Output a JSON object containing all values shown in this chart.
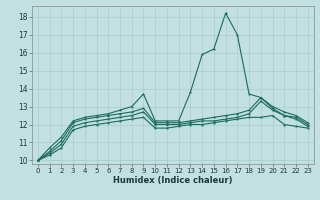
{
  "xlabel": "Humidex (Indice chaleur)",
  "background_color": "#c2e0e0",
  "grid_color": "#a8cccc",
  "line_color": "#1a6b5a",
  "xlim_min": -0.5,
  "xlim_max": 23.5,
  "ylim_min": 9.8,
  "ylim_max": 18.6,
  "yticks": [
    10,
    11,
    12,
    13,
    14,
    15,
    16,
    17,
    18
  ],
  "xticks": [
    0,
    1,
    2,
    3,
    4,
    5,
    6,
    7,
    8,
    9,
    10,
    11,
    12,
    13,
    14,
    15,
    16,
    17,
    18,
    19,
    20,
    21,
    22,
    23
  ],
  "series_main": [
    10.0,
    10.7,
    11.3,
    12.2,
    12.4,
    12.5,
    12.6,
    12.8,
    13.0,
    13.7,
    12.2,
    12.2,
    12.2,
    13.8,
    15.9,
    16.2,
    18.2,
    17.0,
    13.7,
    13.5,
    12.9,
    12.5,
    12.4,
    12.0
  ],
  "series_2": [
    10.0,
    10.5,
    11.1,
    12.1,
    12.3,
    12.4,
    12.5,
    12.6,
    12.7,
    12.9,
    12.1,
    12.1,
    12.1,
    12.2,
    12.3,
    12.4,
    12.5,
    12.6,
    12.8,
    13.5,
    13.0,
    12.7,
    12.5,
    12.1
  ],
  "series_3": [
    10.0,
    10.4,
    10.9,
    11.9,
    12.1,
    12.2,
    12.3,
    12.4,
    12.5,
    12.7,
    12.0,
    12.0,
    12.0,
    12.1,
    12.2,
    12.2,
    12.3,
    12.4,
    12.6,
    13.3,
    12.8,
    12.5,
    12.3,
    11.9
  ],
  "series_4": [
    10.0,
    10.3,
    10.7,
    11.7,
    11.9,
    12.0,
    12.1,
    12.2,
    12.3,
    12.4,
    11.8,
    11.8,
    11.9,
    12.0,
    12.0,
    12.1,
    12.2,
    12.3,
    12.4,
    12.4,
    12.5,
    12.0,
    11.9,
    11.8
  ]
}
